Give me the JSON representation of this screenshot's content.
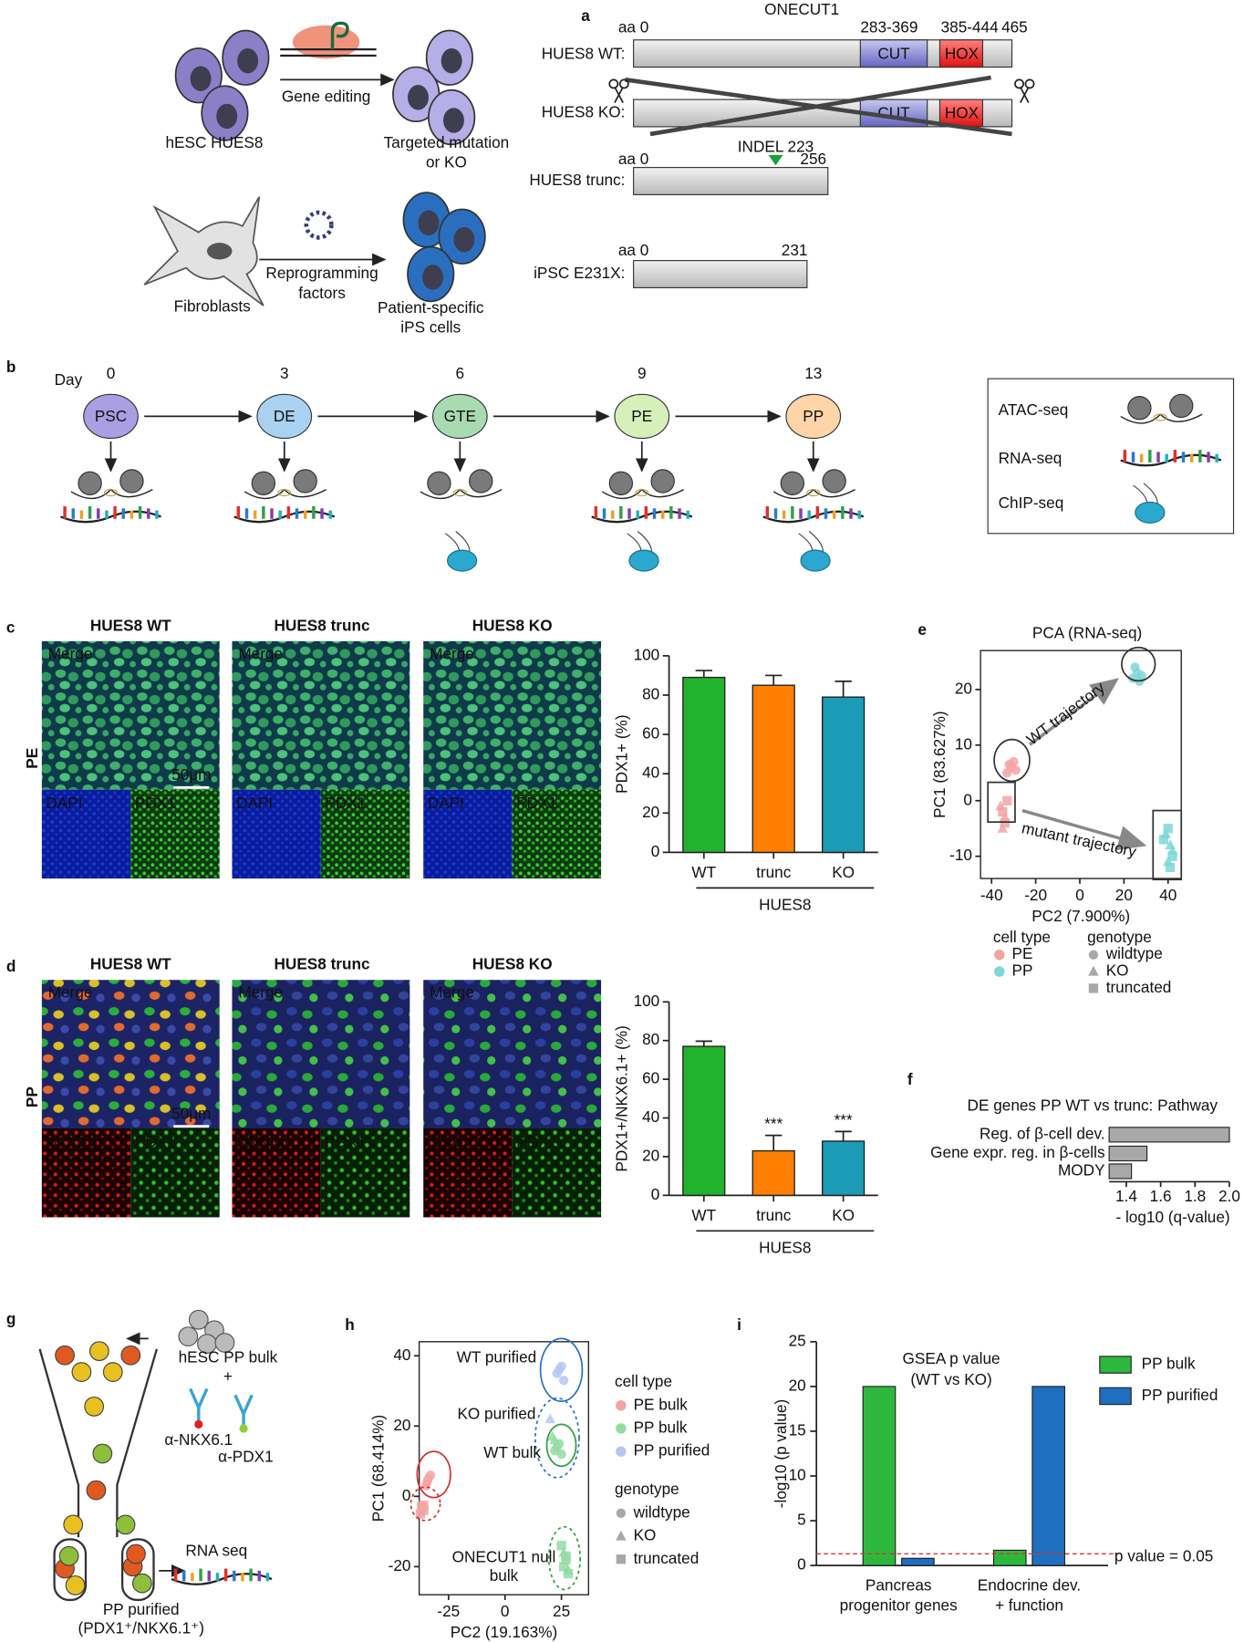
{
  "panel_a": {
    "label": "a",
    "gene_editing": "Gene editing",
    "hesc": "hESC HUES8",
    "targeted": [
      "Targeted mutation",
      "or KO"
    ],
    "reprogramming": [
      "Reprogramming",
      "factors"
    ],
    "fibroblasts": "Fibroblasts",
    "ips": [
      "Patient-specific",
      "iPS cells"
    ],
    "protein": "ONECUT1",
    "constructs": [
      {
        "name": "HUES8 WT:",
        "labels": [
          "aa 0",
          "283-369",
          "385-444",
          "465"
        ],
        "domains": [
          "CUT",
          "HOX"
        ]
      },
      {
        "name": "HUES8 KO:",
        "domains": [
          "CUT",
          "HOX"
        ]
      },
      {
        "name": "HUES8 trunc:",
        "labels": [
          "aa 0",
          "256"
        ],
        "mutation": "INDEL 223"
      },
      {
        "name": "iPSC E231X:",
        "labels": [
          "aa 0",
          "231"
        ]
      }
    ]
  },
  "panel_b": {
    "label": "b",
    "day": "Day",
    "stages": [
      {
        "day": "0",
        "name": "PSC",
        "color": "#a99fe2"
      },
      {
        "day": "3",
        "name": "DE",
        "color": "#a9d2f2"
      },
      {
        "day": "6",
        "name": "GTE",
        "color": "#a8dbb2"
      },
      {
        "day": "9",
        "name": "PE",
        "color": "#d6f0ba"
      },
      {
        "day": "13",
        "name": "PP",
        "color": "#ffd4a8"
      }
    ],
    "legend": [
      "ATAC-seq",
      "RNA-seq",
      "ChIP-seq"
    ]
  },
  "panel_c": {
    "label": "c",
    "columns": [
      "HUES8 WT",
      "HUES8 trunc",
      "HUES8 KO"
    ],
    "row": "PE",
    "merge": "Merge",
    "channels": [
      "DAPI",
      "PDX1"
    ],
    "scale": "50μm",
    "chart_data": {
      "type": "bar",
      "y_label": "PDX1+ (%)",
      "categories": [
        "WT",
        "trunc",
        "KO"
      ],
      "values": [
        89,
        85,
        79
      ],
      "errors": [
        3.5,
        5,
        8
      ],
      "colors": [
        "#22b32e",
        "#ff8000",
        "#1c9bb6"
      ],
      "ylim": [
        0,
        100
      ],
      "yticks": [
        0,
        20,
        40,
        60,
        80,
        100
      ],
      "group_label": "HUES8"
    }
  },
  "panel_d": {
    "label": "d",
    "columns": [
      "HUES8 WT",
      "HUES8 trunc",
      "HUES8 KO"
    ],
    "row": "PP",
    "merge": "Merge",
    "channels": [
      "NKX6.1",
      "PDX1"
    ],
    "scale": "50μm",
    "chart_data": {
      "type": "bar",
      "y_label": "PDX1+/NKX6.1+ (%)",
      "categories": [
        "WT",
        "trunc",
        "KO"
      ],
      "values": [
        77,
        23,
        28
      ],
      "errors": [
        2.7,
        8,
        5
      ],
      "colors": [
        "#22b32e",
        "#ff8000",
        "#1c9bb6"
      ],
      "ylim": [
        0,
        100
      ],
      "yticks": [
        0,
        20,
        40,
        60,
        80,
        100
      ],
      "group_label": "HUES8",
      "significance": [
        {
          "index": 1,
          "label": "***"
        },
        {
          "index": 2,
          "label": "***"
        }
      ]
    }
  },
  "panel_e": {
    "label": "e",
    "chart_data": {
      "type": "scatter",
      "title": "PCA (RNA-seq)",
      "x_label": "PC2 (7.900%)",
      "y_label": "PC1 (83.627%)",
      "xlim": [
        -45,
        46
      ],
      "ylim": [
        -14,
        27
      ],
      "xticks": [
        -40,
        -20,
        0,
        20,
        40
      ],
      "yticks": [
        -10,
        0,
        10,
        20
      ],
      "annotations": [
        "WT trajectory",
        "mutant trajectory"
      ],
      "legend_titles": [
        "cell type",
        "genotype"
      ],
      "cell_types": [
        {
          "name": "PE",
          "color": "#f4a3a3"
        },
        {
          "name": "PP",
          "color": "#7fd6d6"
        }
      ],
      "genotypes": [
        {
          "name": "wildtype",
          "shape": "circle"
        },
        {
          "name": "KO",
          "shape": "triangle"
        },
        {
          "name": "truncated",
          "shape": "square"
        }
      ],
      "groups": [
        {
          "cell_type": 0,
          "genotype": 0,
          "x": [
            -33,
            -31,
            -30,
            -32,
            -29
          ],
          "y": [
            5,
            6,
            7,
            6.5,
            5.5
          ]
        },
        {
          "cell_type": 1,
          "genotype": 0,
          "x": [
            24,
            26,
            27,
            25,
            28
          ],
          "y": [
            22,
            23,
            21.5,
            24,
            22.5
          ]
        },
        {
          "cell_type": 0,
          "genotype": 1,
          "x": [
            -36,
            -34,
            -35
          ],
          "y": [
            -1,
            -3,
            -5
          ]
        },
        {
          "cell_type": 0,
          "genotype": 2,
          "x": [
            -35,
            -33,
            -34
          ],
          "y": [
            -2,
            0,
            -4
          ]
        },
        {
          "cell_type": 1,
          "genotype": 1,
          "x": [
            39,
            41,
            40,
            42
          ],
          "y": [
            -6,
            -8,
            -11,
            -9
          ]
        },
        {
          "cell_type": 1,
          "genotype": 2,
          "x": [
            40,
            38,
            42,
            41
          ],
          "y": [
            -5,
            -7,
            -10,
            -12
          ]
        }
      ]
    }
  },
  "panel_f": {
    "label": "f",
    "chart_data": {
      "type": "hbar",
      "title": "DE genes PP WT vs trunc: Pathway",
      "x_label": "- log10 (q-value)",
      "categories": [
        "Reg. of β-cell dev.",
        "Gene expr. reg. in β-cells",
        "MODY"
      ],
      "values": [
        2.0,
        1.52,
        1.43
      ],
      "color": "#a8a8a8",
      "xlim": [
        1.3,
        2.0
      ],
      "xticks": [
        1.4,
        1.6,
        1.8,
        {
          "value": 2,
          "label": "2.0"
        }
      ]
    }
  },
  "panel_g": {
    "label": "g",
    "bulk": "hESC PP bulk",
    "plus": "+",
    "antibodies": [
      "α-NKX6.1",
      "α-PDX1"
    ],
    "rna": "RNA seq",
    "purified": [
      "PP purified",
      "(PDX1⁺/NKX6.1⁺)"
    ]
  },
  "panel_h": {
    "label": "h",
    "chart_data": {
      "type": "scatter",
      "x_label": "PC2 (19.163%)",
      "y_label": "PC1 (68.414%)",
      "xlim": [
        -38,
        37
      ],
      "ylim": [
        -28,
        44
      ],
      "xticks": [
        -25,
        0,
        25
      ],
      "yticks": [
        -20,
        0,
        20,
        40
      ],
      "annotations": [
        "WT purified",
        "KO purified",
        "WT bulk",
        "ONECUT1 null",
        "bulk"
      ],
      "legend_titles": [
        "cell type",
        "genotype"
      ],
      "cell_types": [
        {
          "name": "PE bulk",
          "color": "#f4a3a3"
        },
        {
          "name": "PP bulk",
          "color": "#93dca3"
        },
        {
          "name": "PP purified",
          "color": "#b3c9f2"
        }
      ],
      "genotypes": [
        {
          "name": "wildtype",
          "shape": "circle"
        },
        {
          "name": "KO",
          "shape": "triangle"
        },
        {
          "name": "truncated",
          "shape": "square"
        }
      ],
      "groups": [
        {
          "cell_type": 0,
          "genotype": 0,
          "x": [
            -35,
            -34,
            -33,
            -34.5
          ],
          "y": [
            3,
            5,
            6,
            4
          ]
        },
        {
          "cell_type": 0,
          "genotype": 2,
          "x": [
            -37,
            -36,
            -37.5,
            -36
          ],
          "y": [
            -3,
            -4,
            -5,
            -2.5
          ]
        },
        {
          "cell_type": 2,
          "genotype": 0,
          "x": [
            23,
            25,
            26,
            24
          ],
          "y": [
            35,
            37,
            33,
            36
          ]
        },
        {
          "cell_type": 2,
          "genotype": 1,
          "x": [
            20
          ],
          "y": [
            22
          ]
        },
        {
          "cell_type": 1,
          "genotype": 0,
          "x": [
            22,
            24,
            25,
            23
          ],
          "y": [
            13,
            15,
            12,
            14
          ]
        },
        {
          "cell_type": 1,
          "genotype": 1,
          "x": [
            21,
            22,
            26,
            28
          ],
          "y": [
            17,
            16,
            -16,
            -21
          ]
        },
        {
          "cell_type": 1,
          "genotype": 2,
          "x": [
            25,
            27,
            26,
            28,
            27
          ],
          "y": [
            -14,
            -17,
            -20,
            -22,
            -18
          ]
        }
      ]
    }
  },
  "panel_i": {
    "label": "i",
    "chart_data": {
      "type": "grouped_bar",
      "title": [
        "GSEA p value",
        "(WT vs KO)"
      ],
      "y_label": "-log10 (p value)",
      "categories": [
        [
          "Pancreas",
          "progenitor genes"
        ],
        [
          "Endocrine dev.",
          "+ function"
        ]
      ],
      "series": [
        {
          "name": "PP bulk",
          "color": "#2db83d",
          "values": [
            20,
            1.7
          ]
        },
        {
          "name": "PP purified",
          "color": "#1f6fc0",
          "values": [
            0.8,
            20
          ]
        }
      ],
      "ylim": [
        0,
        25
      ],
      "yticks": [
        0,
        5,
        10,
        15,
        20,
        25
      ],
      "threshold": {
        "value": 1.3,
        "label": "p value = 0.05"
      }
    }
  }
}
